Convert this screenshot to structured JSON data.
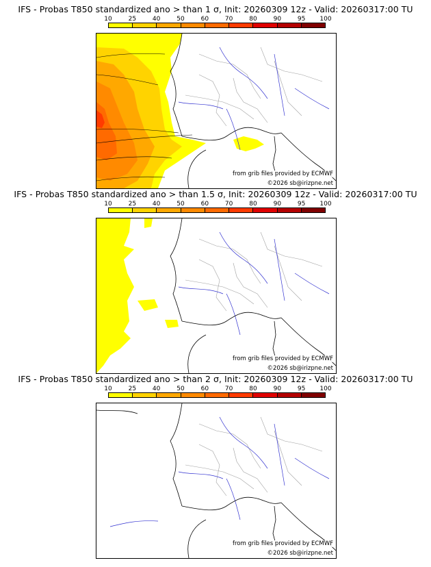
{
  "colorbar": {
    "labels": [
      "10",
      "25",
      "40",
      "50",
      "60",
      "70",
      "80",
      "90",
      "95",
      "100"
    ],
    "colors": [
      "#ffff00",
      "#ffd300",
      "#ffa800",
      "#ff8a00",
      "#ff6a00",
      "#ff3b00",
      "#e00000",
      "#b40000",
      "#800000"
    ]
  },
  "credits": {
    "source": "from grib files provided by ECMWF",
    "copyright": "©2026 sb@irizpne.net"
  },
  "panels": [
    {
      "title": "IFS - Probas T850  standardized ano > than 1 σ, Init: 20260309 12z - Valid: 20260317:00 TU"
    },
    {
      "title": "IFS - Probas T850  standardized ano > than 1.5 σ, Init: 20260309 12z - Valid: 20260317:00 TU"
    },
    {
      "title": "IFS - Probas T850  standardized ano > than 2 σ, Init: 20260309 12z - Valid: 20260317:00 TU"
    }
  ],
  "map_colors": {
    "coast": "#000000",
    "rivers": "#3030d0",
    "borders": "#a0a0a0"
  }
}
